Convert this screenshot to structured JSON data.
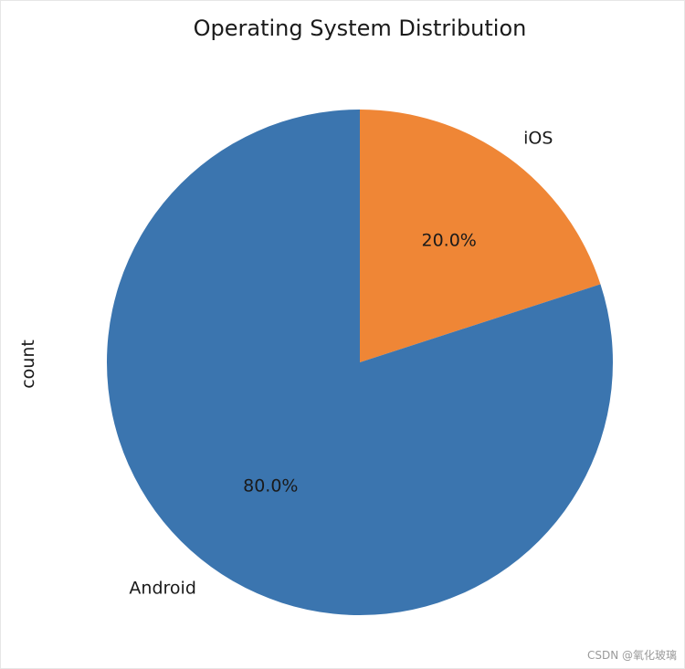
{
  "chart_data": {
    "type": "pie",
    "title": "Operating System Distribution",
    "ylabel": "count",
    "categories": [
      "iOS",
      "Android"
    ],
    "values": [
      20,
      80
    ],
    "percent_labels": [
      "20.0%",
      "80.0%"
    ],
    "colors": [
      "#ef8636",
      "#3b75af"
    ],
    "start_angle_deg": 90,
    "direction": "clockwise"
  },
  "watermark": "CSDN @氧化玻璃"
}
